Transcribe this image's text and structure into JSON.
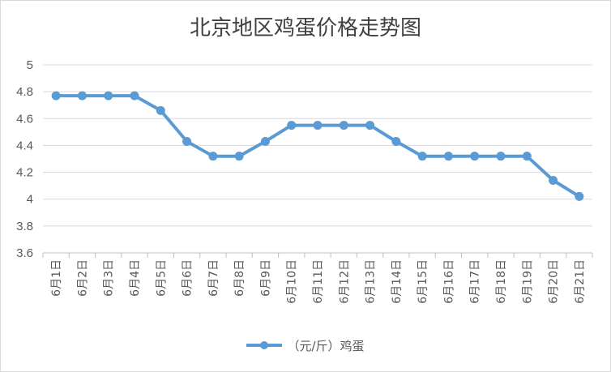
{
  "chart_data": {
    "type": "line",
    "title": "北京地区鸡蛋价格走势图",
    "categories": [
      "6月1日",
      "6月2日",
      "6月3日",
      "6月4日",
      "6月5日",
      "6月6日",
      "6月7日",
      "6月8日",
      "6月9日",
      "6月10日",
      "6月11日",
      "6月12日",
      "6月13日",
      "6月14日",
      "6月15日",
      "6月16日",
      "6月17日",
      "6月18日",
      "6月19日",
      "6月20日",
      "6月21日"
    ],
    "series": [
      {
        "name": "（元/斤）鸡蛋",
        "values": [
          4.77,
          4.77,
          4.77,
          4.77,
          4.66,
          4.43,
          4.32,
          4.32,
          4.43,
          4.55,
          4.55,
          4.55,
          4.55,
          4.43,
          4.32,
          4.32,
          4.32,
          4.32,
          4.32,
          4.14,
          4.02
        ],
        "color": "#5b9bd5"
      }
    ],
    "yticks": [
      "3.6",
      "3.8",
      "4",
      "4.2",
      "4.4",
      "4.6",
      "4.8",
      "5"
    ],
    "ylim": [
      3.6,
      5
    ],
    "grid": true,
    "legend": "bottom",
    "gridColor": "#d9d9d9"
  }
}
